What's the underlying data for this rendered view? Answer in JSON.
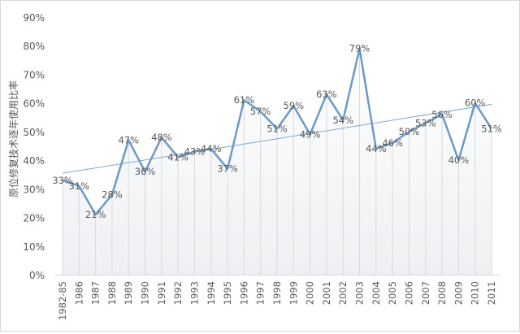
{
  "chart_data": {
    "type": "line",
    "title": "",
    "xlabel": "",
    "ylabel": "原位修复技术逐年使用比率",
    "categories": [
      "1982-85",
      "1986",
      "1987",
      "1988",
      "1989",
      "1990",
      "1991",
      "1992",
      "1993",
      "1994",
      "1995",
      "1996",
      "1997",
      "1998",
      "1999",
      "2000",
      "2001",
      "2002",
      "2003",
      "2004",
      "2005",
      "2006",
      "2007",
      "2008",
      "2009",
      "2010",
      "2011"
    ],
    "values": [
      33,
      31,
      21,
      28,
      47,
      36,
      48,
      41,
      43,
      44,
      37,
      61,
      57,
      51,
      59,
      49,
      63,
      54,
      79,
      44,
      46,
      50,
      53,
      56,
      40,
      60,
      51
    ],
    "data_labels": [
      "33%",
      "31%",
      "21%",
      "28%",
      "47%",
      "36%",
      "48%",
      "41%",
      "43%",
      "44%",
      "37%",
      "61%",
      "57%",
      "51%",
      "59%",
      "49%",
      "63%",
      "54%",
      "79%",
      "44%",
      "46%",
      "50%",
      "53%",
      "56%",
      "40%",
      "60%",
      "51%"
    ],
    "yticks": [
      "0%",
      "10%",
      "20%",
      "30%",
      "40%",
      "50%",
      "60%",
      "70%",
      "80%",
      "90%"
    ],
    "ylim": [
      0,
      90
    ],
    "trendline": "linear",
    "grid": false,
    "drop_lines": true,
    "legend": "none",
    "colors": {
      "line": "#6b9ac9",
      "trend": "#7fa7cf",
      "drop": "#d9d9d9",
      "text": "#595959"
    }
  }
}
